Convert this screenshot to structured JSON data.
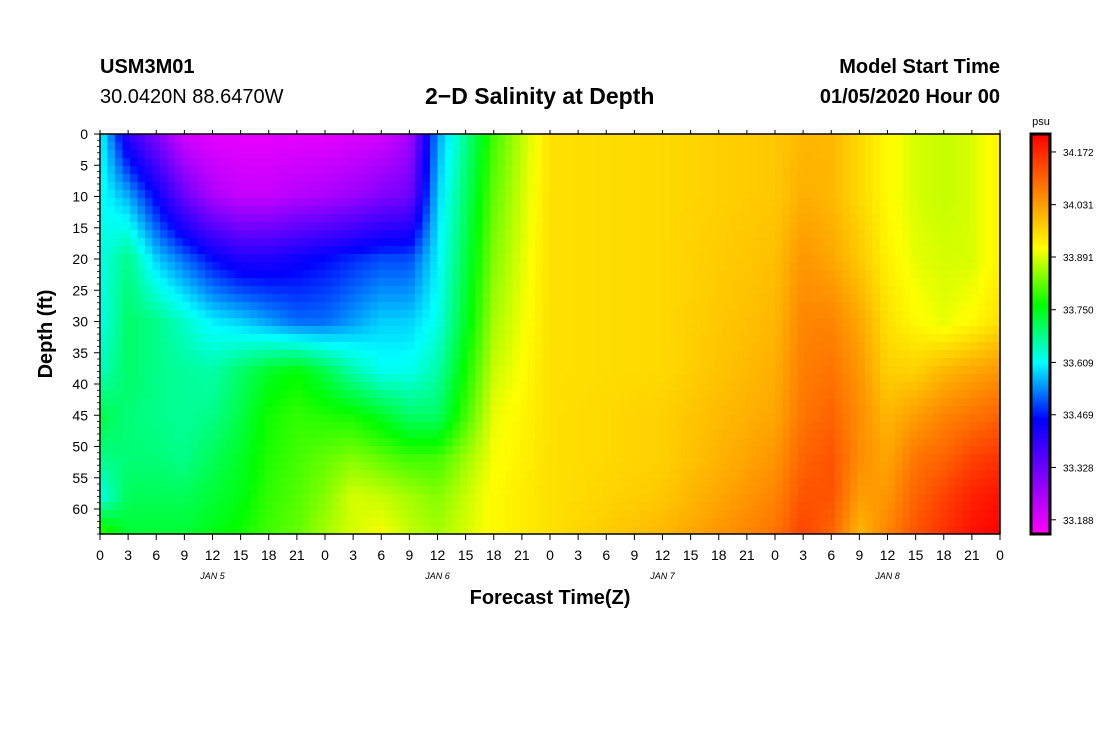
{
  "header": {
    "station": "USM3M01",
    "coords": "30.0420N 88.6470W",
    "title": "2−D Salinity at Depth",
    "model_start_label": "Model Start Time",
    "model_start_value": "01/05/2020 Hour 00"
  },
  "chart_data": {
    "type": "heatmap",
    "title": "2−D Salinity at Depth",
    "xlabel": "Forecast Time(Z)",
    "ylabel": "Depth (ft)",
    "x_tick_labels": [
      "0",
      "3",
      "6",
      "9",
      "12",
      "15",
      "18",
      "21",
      "0",
      "3",
      "6",
      "9",
      "12",
      "15",
      "18",
      "21",
      "0",
      "3",
      "6",
      "9",
      "12",
      "15",
      "18",
      "21",
      "0",
      "3",
      "6",
      "9",
      "12",
      "15",
      "18",
      "21",
      "0"
    ],
    "x_range_hours": [
      0,
      96
    ],
    "date_labels": [
      {
        "label": "JAN 5",
        "hour": 12
      },
      {
        "label": "JAN 6",
        "hour": 36
      },
      {
        "label": "JAN 7",
        "hour": 60
      },
      {
        "label": "JAN 8",
        "hour": 84
      }
    ],
    "y_ticks": [
      0,
      5,
      10,
      15,
      20,
      25,
      30,
      35,
      40,
      45,
      50,
      55,
      60
    ],
    "ylim": [
      0,
      64
    ],
    "colorbar": {
      "unit": "psu",
      "ticks": [
        "34.172",
        "34.031",
        "33.891",
        "33.750",
        "33.609",
        "33.469",
        "33.328",
        "33.188"
      ],
      "range": [
        33.15,
        34.22
      ],
      "colors": [
        "#ff00ff",
        "#7f00ff",
        "#0000ff",
        "#00ffff",
        "#00ff00",
        "#ffff00",
        "#ff7f00",
        "#ff0000"
      ]
    },
    "hours": [
      0,
      3,
      6,
      9,
      12,
      15,
      18,
      21,
      24,
      27,
      30,
      33,
      36,
      42,
      48,
      60,
      72,
      75,
      78,
      81,
      84,
      87,
      90,
      93,
      96
    ],
    "depths": [
      0,
      10,
      20,
      30,
      38,
      45,
      52,
      58,
      64
    ],
    "values": [
      [
        33.62,
        33.62,
        33.62,
        33.62,
        33.65,
        33.72,
        33.68,
        33.62,
        33.8
      ],
      [
        33.4,
        33.56,
        33.68,
        33.7,
        33.7,
        33.69,
        33.69,
        33.71,
        33.73
      ],
      [
        33.3,
        33.45,
        33.58,
        33.68,
        33.68,
        33.68,
        33.69,
        33.71,
        33.73
      ],
      [
        33.2,
        33.33,
        33.52,
        33.64,
        33.67,
        33.67,
        33.68,
        33.71,
        33.73
      ],
      [
        33.18,
        33.25,
        33.46,
        33.6,
        33.66,
        33.68,
        33.71,
        33.73,
        33.75
      ],
      [
        33.18,
        33.22,
        33.42,
        33.58,
        33.7,
        33.72,
        33.74,
        33.75,
        33.77
      ],
      [
        33.18,
        33.22,
        33.42,
        33.55,
        33.74,
        33.77,
        33.78,
        33.79,
        33.8
      ],
      [
        33.18,
        33.24,
        33.44,
        33.52,
        33.76,
        33.79,
        33.8,
        33.81,
        33.82
      ],
      [
        33.18,
        33.25,
        33.46,
        33.52,
        33.72,
        33.78,
        33.82,
        33.84,
        33.86
      ],
      [
        33.19,
        33.27,
        33.48,
        33.55,
        33.66,
        33.77,
        33.84,
        33.89,
        33.89
      ],
      [
        33.2,
        33.3,
        33.5,
        33.58,
        33.62,
        33.74,
        33.82,
        33.88,
        33.91
      ],
      [
        33.25,
        33.32,
        33.5,
        33.58,
        33.62,
        33.7,
        33.8,
        33.86,
        33.88
      ],
      [
        33.55,
        33.58,
        33.6,
        33.62,
        33.66,
        33.7,
        33.8,
        33.84,
        33.86
      ],
      [
        33.8,
        33.82,
        33.84,
        33.86,
        33.88,
        33.9,
        33.91,
        33.92,
        33.92
      ],
      [
        33.95,
        33.95,
        33.95,
        33.95,
        33.95,
        33.95,
        33.95,
        33.95,
        33.95
      ],
      [
        33.96,
        33.96,
        33.96,
        33.96,
        33.96,
        33.97,
        33.97,
        33.98,
        34.0
      ],
      [
        33.98,
        33.98,
        33.99,
        34.0,
        34.01,
        34.02,
        34.04,
        34.06,
        34.08
      ],
      [
        34.0,
        34.01,
        34.04,
        34.06,
        34.07,
        34.08,
        34.1,
        34.12,
        34.14
      ],
      [
        34.0,
        34.0,
        34.02,
        34.06,
        34.08,
        34.1,
        34.12,
        34.12,
        34.1
      ],
      [
        33.96,
        33.96,
        33.98,
        34.02,
        34.04,
        34.05,
        34.05,
        34.03,
        34.0
      ],
      [
        33.92,
        33.92,
        33.93,
        33.95,
        33.97,
        34.0,
        34.02,
        34.04,
        34.06
      ],
      [
        33.89,
        33.89,
        33.9,
        33.92,
        33.97,
        34.03,
        34.08,
        34.1,
        34.12
      ],
      [
        33.88,
        33.88,
        33.89,
        33.9,
        34.0,
        34.06,
        34.1,
        34.14,
        34.16
      ],
      [
        33.89,
        33.89,
        33.89,
        33.92,
        34.02,
        34.08,
        34.14,
        34.18,
        34.2
      ],
      [
        33.93,
        33.93,
        33.93,
        33.95,
        34.04,
        34.1,
        34.16,
        34.2,
        34.22
      ]
    ]
  }
}
